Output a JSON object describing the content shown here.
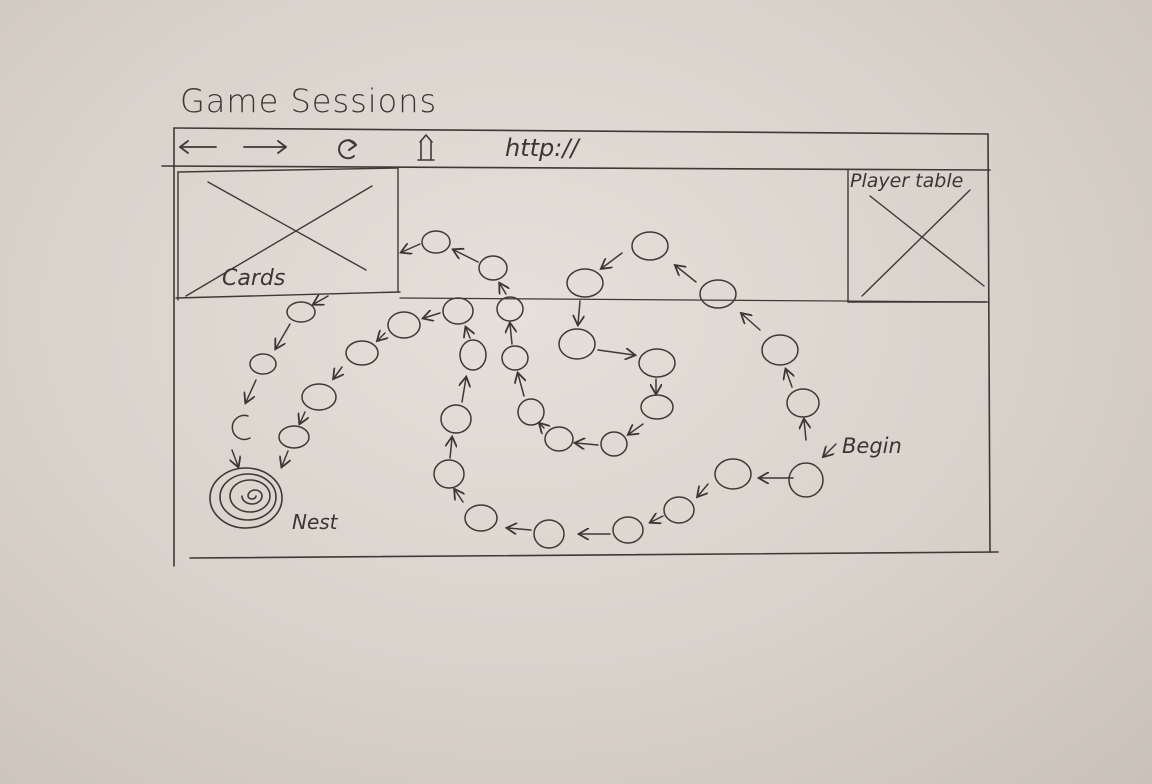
{
  "window": {
    "title": "Game Sessions"
  },
  "toolbar": {
    "url": "http://",
    "icons": [
      "back-arrow-icon",
      "forward-arrow-icon",
      "reload-icon",
      "home-icon"
    ]
  },
  "panels": {
    "cards_label": "Cards",
    "player_table_label": "Player table"
  },
  "board": {
    "begin_label": "Begin",
    "nest_label": "Nest"
  }
}
